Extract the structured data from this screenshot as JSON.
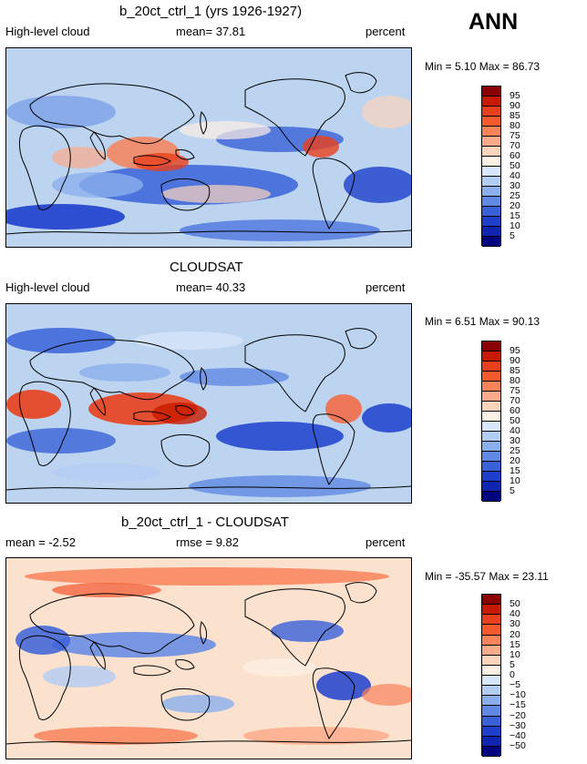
{
  "header": {
    "season": "ANN"
  },
  "panels": [
    {
      "title": "b_20ct_ctrl_1 (yrs 1926-1927)",
      "left_label": "High-level cloud",
      "center_label": "mean=  37.81",
      "right_label": "percent",
      "minmax": "Min =    5.10  Max =  86.73",
      "map_name": "model-high-cloud-map",
      "palette": "seq",
      "colorbar_labels": [
        "95",
        "90",
        "85",
        "80",
        "75",
        "70",
        "60",
        "50",
        "40",
        "30",
        "25",
        "20",
        "15",
        "10",
        "5"
      ]
    },
    {
      "title": "CLOUDSAT",
      "left_label": "High-level cloud",
      "center_label": "mean=  40.33",
      "right_label": "percent",
      "minmax": "Min =    6.51  Max =  90.13",
      "map_name": "obs-high-cloud-map",
      "palette": "seq",
      "colorbar_labels": [
        "95",
        "90",
        "85",
        "80",
        "75",
        "70",
        "60",
        "50",
        "40",
        "30",
        "25",
        "20",
        "15",
        "10",
        "5"
      ]
    },
    {
      "title": "b_20ct_ctrl_1 - CLOUDSAT",
      "left_label": "mean =  -2.52",
      "center_label": "rmse =   9.82",
      "right_label": "percent",
      "minmax": "Min = -35.57  Max =  23.11",
      "map_name": "difference-map",
      "palette": "div",
      "colorbar_labels": [
        "50",
        "40",
        "30",
        "20",
        "15",
        "10",
        "5",
        "0",
        "−5",
        "−10",
        "−15",
        "−20",
        "−30",
        "−40",
        "−50"
      ]
    }
  ],
  "colors": {
    "colorbar": [
      "#8b0000",
      "#c81a00",
      "#e8401c",
      "#f45a2e",
      "#f8835a",
      "#fbab8a",
      "#fcd4bc",
      "#fdf0e4",
      "#d8e7fb",
      "#b3ccf4",
      "#8bafec",
      "#6088e4",
      "#3a62d8",
      "#1d3fcc",
      "#0f24b0",
      "#00047e"
    ]
  }
}
